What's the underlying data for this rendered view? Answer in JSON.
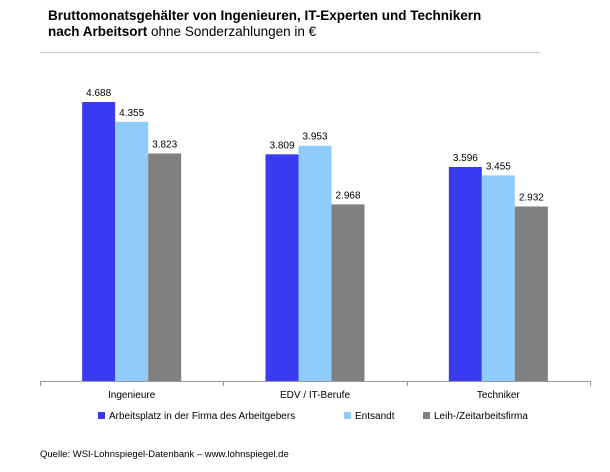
{
  "title": {
    "line1": "Bruttomonatsgehälter von Ingenieuren, IT-Experten und Technikern",
    "line2_bold": "nach Arbeitsort",
    "line2_rest": " ohne Sonderzahlungen in €"
  },
  "source": "Quelle: WSI-Lohnspiegel-Datenbank  –  www.lohnspiegel.de",
  "colors": {
    "series": [
      "#3a3af0",
      "#8fcbfb",
      "#808080"
    ]
  },
  "chart_data": {
    "type": "bar",
    "categories": [
      "Ingenieure",
      "EDV / IT-Berufe",
      "Techniker"
    ],
    "series": [
      {
        "name": "Arbeitsplatz in der Firma des Arbeitgebers",
        "values": [
          4688,
          3809,
          3596
        ],
        "labels": [
          "4.688",
          "3.809",
          "3.596"
        ]
      },
      {
        "name": "Entsandt",
        "values": [
          4355,
          3953,
          3455
        ],
        "labels": [
          "4.355",
          "3.953",
          "3.455"
        ]
      },
      {
        "name": "Leih-/Zeitarbeitsfirma",
        "values": [
          3823,
          2968,
          2932
        ],
        "labels": [
          "3.823",
          "2.968",
          "2.932"
        ]
      }
    ],
    "ylim": [
      0,
      4688
    ],
    "grid": false,
    "legend": "bottom"
  }
}
